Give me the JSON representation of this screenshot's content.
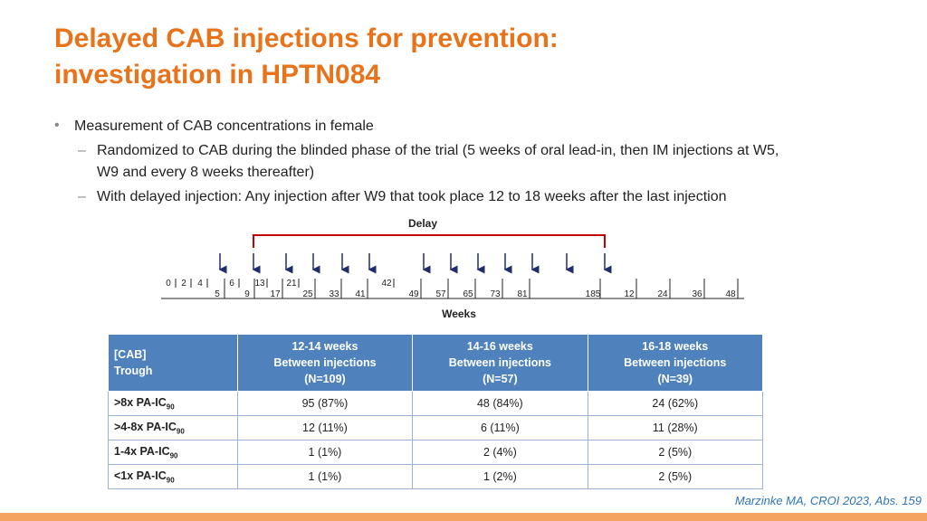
{
  "header": {
    "title_lines": [
      "Delayed CAB injections for prevention:",
      "investigation in HPTN084"
    ]
  },
  "bullets": [
    {
      "text": "Measurement of CAB concentrations in female",
      "level": 1
    },
    {
      "text": "Randomized to CAB during the blinded phase of the trial (5 weeks of oral lead-in, then IM injections at W5,",
      "level": 2
    },
    {
      "text": "W9 and every 8 weeks thereafter)",
      "level": 3
    },
    {
      "text": "With delayed injection: Any injection after W9 that took place 12 to 18 weeks after the last injection",
      "level": 2
    }
  ],
  "timeline": {
    "delay_label": "Delay",
    "axis_label": "Weeks",
    "top_labels": [
      "0",
      "2",
      "4",
      "6",
      "13",
      "21",
      "42"
    ],
    "bottom_labels": [
      "5",
      "9",
      "17",
      "25",
      "33",
      "41",
      "49",
      "57",
      "65",
      "73",
      "81",
      "185",
      "12",
      "24",
      "36",
      "48"
    ]
  },
  "table": {
    "header": [
      "[CAB]\nTrough",
      "12-14 weeks\nBetween injections\n(N=109)",
      "14-16 weeks\nBetween injections\n(N=57)",
      "16-18 weeks\nBetween injections\n(N=39)"
    ],
    "rows": [
      [
        {
          "text": ">8x PA-IC",
          "sub": "90"
        },
        "95 (87%)",
        "48 (84%)",
        "24 (62%)"
      ],
      [
        {
          "text": ">4-8x PA-IC",
          "sub": "90"
        },
        "12 (11%)",
        "6 (11%)",
        "11 (28%)"
      ],
      [
        {
          "text": "1-4x PA-IC",
          "sub": "90"
        },
        "1 (1%)",
        "2 (4%)",
        "2 (5%)"
      ],
      [
        {
          "text": "<1x PA-IC",
          "sub": "90"
        },
        "1 (1%)",
        "1 (2%)",
        "2 (5%)"
      ]
    ]
  },
  "citation": "Marzinke MA, CROI 2023, Abs. 159"
}
